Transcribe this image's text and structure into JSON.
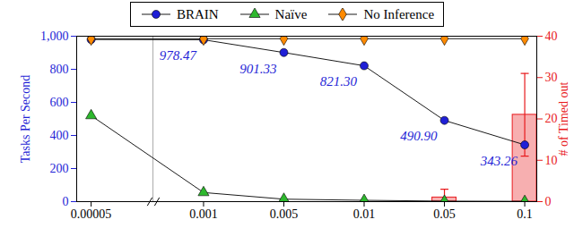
{
  "chart_data": {
    "type": "line",
    "categories": [
      "0.00005",
      "0.001",
      "0.005",
      "0.01",
      "0.05",
      "0.1"
    ],
    "y_label": "Tasks Per Second",
    "y2_label": "# of Timed out",
    "ylim": [
      0,
      1000
    ],
    "yticks": [
      0,
      200,
      400,
      600,
      800,
      {
        "value": 1000,
        "label": "1,000"
      }
    ],
    "y2lim": [
      0,
      40
    ],
    "y2ticks": [
      0,
      10,
      20,
      30,
      40
    ],
    "legend": "top",
    "series": [
      {
        "name": "BRAIN",
        "color": "#1f1fd6",
        "marker": "circle",
        "values": [
          980,
          978.47,
          901.33,
          821.3,
          490.9,
          343.26
        ],
        "data_labels": true,
        "value_labels": [
          null,
          "978.47",
          "901.33",
          "821.30",
          "490.90",
          "343.26"
        ]
      },
      {
        "name": "Naïve",
        "color": "#2db82d",
        "marker": "triangle",
        "values": [
          520,
          55,
          15,
          8,
          3,
          2
        ]
      },
      {
        "name": "No Inference",
        "color": "#ff8a00",
        "marker": "diamond",
        "values": [
          985,
          985,
          985,
          985,
          985,
          985
        ]
      },
      {
        "type": "bar",
        "axis": "y2",
        "color": "#e8191c",
        "values": [
          0,
          0,
          0,
          0,
          1,
          21
        ],
        "errors": [
          0,
          0,
          0,
          0,
          2,
          10
        ]
      }
    ]
  }
}
